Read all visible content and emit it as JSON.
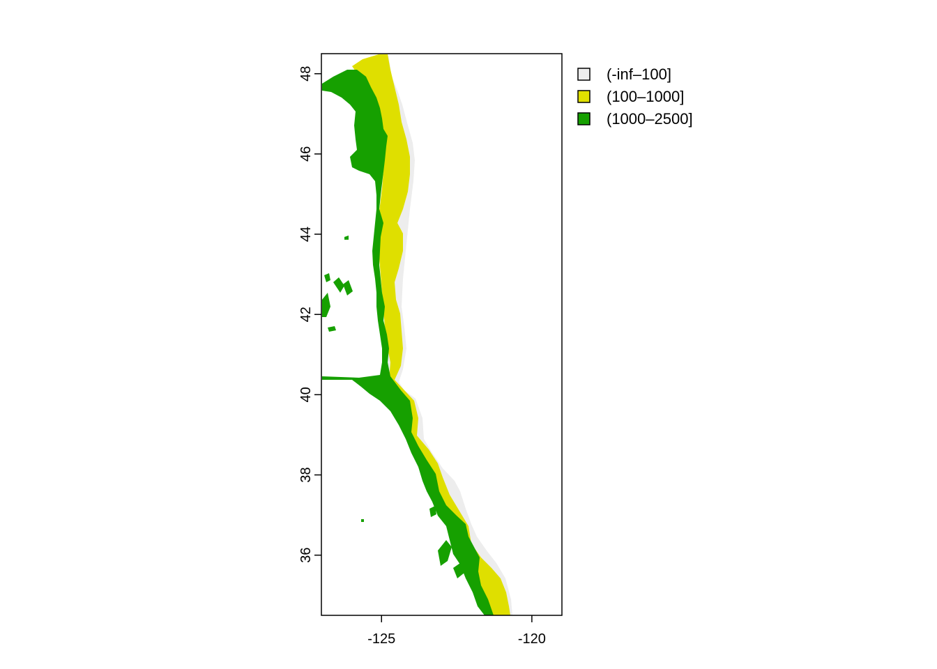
{
  "map": {
    "x_axis": {
      "range": [
        -127,
        -119
      ],
      "ticks": [
        {
          "value": -125,
          "label": "-125"
        },
        {
          "value": -120,
          "label": "-120"
        }
      ]
    },
    "y_axis": {
      "range": [
        34.5,
        48.5
      ],
      "ticks": [
        {
          "value": 36,
          "label": "36"
        },
        {
          "value": 38,
          "label": "38"
        },
        {
          "value": 40,
          "label": "40"
        },
        {
          "value": 42,
          "label": "42"
        },
        {
          "value": 44,
          "label": "44"
        },
        {
          "value": 46,
          "label": "46"
        },
        {
          "value": 48,
          "label": "48"
        }
      ]
    },
    "legend": {
      "placement": "top-right",
      "items": [
        {
          "label": "(-inf–100]",
          "color": "#ededed"
        },
        {
          "label": "(100–1000]",
          "color": "#dfdf00"
        },
        {
          "label": "(1000–2500]",
          "color": "#16a000"
        }
      ]
    },
    "colors": {
      "low": "#ededed",
      "mid": "#dfdf00",
      "high": "#16a000"
    }
  }
}
